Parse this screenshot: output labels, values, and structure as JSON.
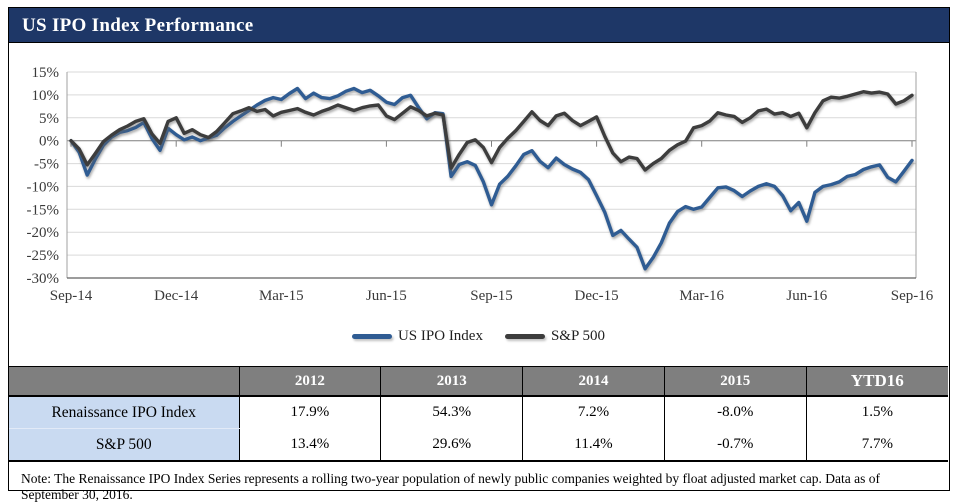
{
  "title_bar": {
    "title": "US IPO Index Performance"
  },
  "chart_data": {
    "type": "line",
    "title": "US IPO Index Performance",
    "xlabel": "",
    "ylabel": "",
    "ylim": [
      -30,
      15
    ],
    "grid": true,
    "legend_position": "bottom",
    "y_ticks": [
      15,
      10,
      5,
      0,
      -5,
      -10,
      -15,
      -20,
      -25,
      -30
    ],
    "y_tick_labels": [
      "15%",
      "10%",
      "5%",
      "0%",
      "-5%",
      "-10%",
      "-15%",
      "-20%",
      "-25%",
      "-30%"
    ],
    "x_tick_labels": [
      "Sep-14",
      "Dec-14",
      "Mar-15",
      "Jun-15",
      "Sep-15",
      "Dec-15",
      "Mar-16",
      "Jun-16",
      "Sep-16"
    ],
    "x_unit": "weekly observations, Sep-2014 through Sep-2016",
    "series": [
      {
        "name": "US IPO Index",
        "color": "#2F5C93",
        "values": [
          0,
          -2.5,
          -7.5,
          -4,
          -1,
          0.8,
          1.8,
          2.2,
          2.9,
          4,
          0.5,
          -2.1,
          2.7,
          1.3,
          0.2,
          0.8,
          0,
          0.6,
          1.2,
          2.8,
          4.2,
          5.4,
          6.6,
          7.8,
          8.8,
          9.4,
          9,
          10.3,
          11.4,
          9.2,
          10.4,
          9.4,
          9.2,
          9.8,
          10.8,
          11.4,
          10.5,
          11,
          9.8,
          8.4,
          7.9,
          9.4,
          9.9,
          7.2,
          4.8,
          6.1,
          5.9,
          -7.8,
          -5.2,
          -4.6,
          -5.4,
          -9,
          -14,
          -9.5,
          -7.8,
          -5.5,
          -3,
          -2.2,
          -4.5,
          -5.9,
          -3.8,
          -5.2,
          -6.2,
          -6.9,
          -8.5,
          -12,
          -15.6,
          -20.7,
          -19.6,
          -21.5,
          -23.3,
          -28,
          -25.5,
          -22.3,
          -18,
          -15.5,
          -14.4,
          -15,
          -14.5,
          -12.4,
          -10.3,
          -10.1,
          -10.9,
          -12.2,
          -11,
          -10,
          -9.4,
          -10,
          -12,
          -15.3,
          -13.5,
          -17.6,
          -11.3,
          -10,
          -9.6,
          -9,
          -7.8,
          -7.4,
          -6.3,
          -5.7,
          -5.3,
          -8,
          -9,
          -6.7,
          -4.3
        ]
      },
      {
        "name": "S&P 500",
        "color": "#3D3D3D",
        "values": [
          0,
          -1.8,
          -5.3,
          -2.8,
          -0.2,
          1.2,
          2.4,
          3.2,
          4.2,
          4.8,
          1.5,
          -0.6,
          4.2,
          5,
          1.6,
          2.4,
          1.3,
          0.7,
          2,
          3.9,
          5.9,
          6.5,
          7.2,
          6.4,
          6.8,
          5.4,
          6.2,
          6.6,
          7,
          6.2,
          5.6,
          6.4,
          7,
          7.8,
          7.2,
          6.6,
          7.2,
          7.6,
          7.8,
          5.4,
          4.6,
          6,
          7.4,
          6.6,
          5.4,
          6,
          5.6,
          -6,
          -3,
          -0.4,
          0.2,
          -1.5,
          -4.8,
          -1.5,
          0.5,
          2.2,
          4.2,
          6.3,
          4.4,
          3.3,
          5.4,
          6,
          4.4,
          3.3,
          4.2,
          5.2,
          1,
          -2.7,
          -4.6,
          -3.6,
          -3.9,
          -6.4,
          -5,
          -3.9,
          -2.1,
          -0.9,
          -0.1,
          2.8,
          3.3,
          4.3,
          6.1,
          5.6,
          5.3,
          4,
          5,
          6.5,
          6.9,
          5.8,
          6.1,
          5.3,
          6,
          2.8,
          6.1,
          8.7,
          9.5,
          9.3,
          9.7,
          10.2,
          10.7,
          10.4,
          10.6,
          10.2,
          8,
          8.7,
          9.9
        ]
      }
    ]
  },
  "table": {
    "headers": [
      "",
      "2012",
      "2013",
      "2014",
      "2015",
      "YTD16"
    ],
    "rows": [
      {
        "label": "Renaissance IPO Index",
        "values": [
          "17.9%",
          "54.3%",
          "7.2%",
          "-8.0%",
          "1.5%"
        ]
      },
      {
        "label": "S&P 500",
        "values": [
          "13.4%",
          "29.6%",
          "11.4%",
          "-0.7%",
          "7.7%"
        ]
      }
    ]
  },
  "note": "Note: The Renaissance IPO Index Series represents a rolling two-year population of newly public companies weighted by float adjusted market cap. Data as of September 30, 2016.",
  "colors": {
    "title_bar_bg": "#1E3767",
    "ipo_line": "#2F5C93",
    "sp500_line": "#3D3D3D",
    "gridline": "#D9D9D9",
    "zero_axis": "#7F7F7F",
    "plot_border": "#A0A0A0",
    "table_header_bg": "#7F7F7F",
    "row_label_bg": "#C9DAF1"
  }
}
